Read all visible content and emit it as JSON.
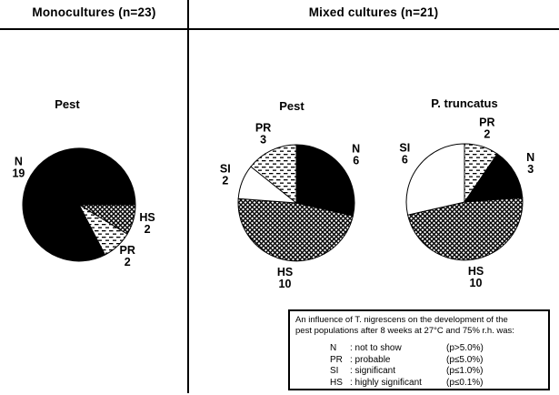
{
  "page": {
    "background": "#ffffff",
    "ink": "#000000"
  },
  "header": {
    "left": "Monocultures (n=23)",
    "right": "Mixed cultures (n=21)"
  },
  "chart_data": [
    {
      "type": "pie",
      "title": "Pest",
      "group": "Monocultures (n=23)",
      "n": 23,
      "start_angle_deg": 90,
      "slices": [
        {
          "label": "HS",
          "value": 2,
          "pattern": "crosshatch"
        },
        {
          "label": "PR",
          "value": 2,
          "pattern": "diagonal-dashes"
        },
        {
          "label": "N",
          "value": 19,
          "pattern": "solid-black"
        }
      ]
    },
    {
      "type": "pie",
      "title": "Pest",
      "group": "Mixed cultures (n=21)",
      "n": 21,
      "start_angle_deg": 0,
      "slices": [
        {
          "label": "N",
          "value": 6,
          "pattern": "solid-black"
        },
        {
          "label": "HS",
          "value": 10,
          "pattern": "crosshatch"
        },
        {
          "label": "SI",
          "value": 2,
          "pattern": "white"
        },
        {
          "label": "PR",
          "value": 3,
          "pattern": "diagonal-dashes"
        }
      ]
    },
    {
      "type": "pie",
      "title": "P. truncatus",
      "group": "Mixed cultures (n=21)",
      "n": 21,
      "start_angle_deg": 0,
      "slices": [
        {
          "label": "PR",
          "value": 2,
          "pattern": "diagonal-dashes"
        },
        {
          "label": "N",
          "value": 3,
          "pattern": "solid-black"
        },
        {
          "label": "HS",
          "value": 10,
          "pattern": "crosshatch"
        },
        {
          "label": "SI",
          "value": 6,
          "pattern": "white"
        }
      ]
    }
  ],
  "legend": {
    "intro_line1": "An influence of T. nigrescens on the development of the",
    "intro_line2": "pest populations after 8 weeks at 27°C and 75% r.h. was:",
    "rows": [
      {
        "code": "N",
        "desc": ": not to show",
        "p": "(p>5.0%)"
      },
      {
        "code": "PR",
        "desc": ": probable",
        "p": "(p≤5.0%)"
      },
      {
        "code": "SI",
        "desc": ": significant",
        "p": "(p≤1.0%)"
      },
      {
        "code": "HS",
        "desc": ": highly significant",
        "p": "(p≤0.1%)"
      }
    ]
  }
}
